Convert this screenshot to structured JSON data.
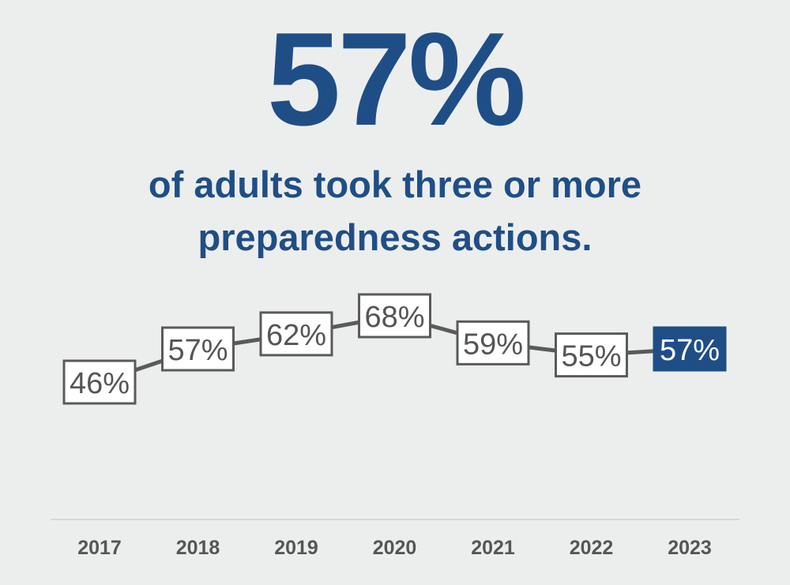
{
  "headline": "57%",
  "subtitle_line1": "of adults took three or more",
  "subtitle_line2": "preparedness actions.",
  "colors": {
    "background": "#eceeed",
    "accent": "#1f4e87",
    "line": "#5a5a5a",
    "text": "#555555"
  },
  "chart_data": {
    "type": "line",
    "categories": [
      "2017",
      "2018",
      "2019",
      "2020",
      "2021",
      "2022",
      "2023"
    ],
    "values": [
      46,
      57,
      62,
      68,
      59,
      55,
      57
    ],
    "labels": [
      "46%",
      "57%",
      "62%",
      "68%",
      "59%",
      "55%",
      "57%"
    ],
    "highlight": "2023",
    "grid": false,
    "legend": "none"
  }
}
